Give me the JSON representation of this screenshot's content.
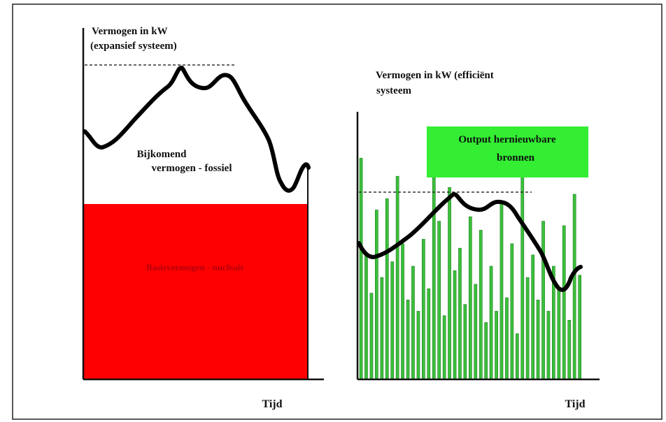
{
  "left_panel": {
    "axis_label_line1": "Vermogen in kW",
    "axis_label_line2": "(expansief systeem)",
    "fossil_label_line1": "Bijkomend",
    "fossil_label_line2": "vermogen - fossiel",
    "nuclear_label": "Basisvermogen - nucleair",
    "x_label": "Tijd"
  },
  "right_panel": {
    "axis_label_line1": "Vermogen in kW (efficiënt",
    "axis_label_line2": "systeem",
    "renewable_label_line1": "Output hernieuwbare",
    "renewable_label_line2": "bronnen",
    "x_label": "Tijd"
  },
  "colors": {
    "nuclear_fill": "#ff0000",
    "renewable_bar": "#3cbf3c",
    "renewable_box": "#33ee33",
    "demand_curve": "#000000",
    "frame": "#222222"
  },
  "renewable_bar_levels": [
    0.98,
    0.55,
    0.38,
    0.75,
    0.45,
    0.8,
    0.52,
    0.9,
    0.6,
    0.35,
    0.5,
    0.3,
    0.62,
    0.4,
    0.95,
    0.7,
    0.28,
    0.85,
    0.48,
    0.58,
    0.33,
    0.72,
    0.42,
    0.66,
    0.25,
    0.5,
    0.3,
    0.78,
    0.36,
    0.6,
    0.2,
    0.9,
    0.45,
    0.55,
    0.35,
    0.7,
    0.3,
    0.5,
    0.4,
    0.68,
    0.26,
    0.82,
    0.46
  ]
}
